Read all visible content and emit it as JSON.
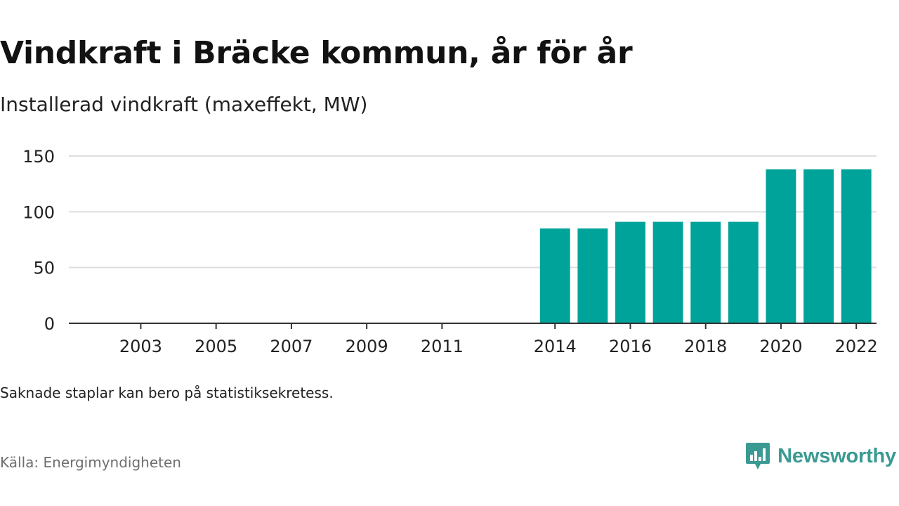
{
  "title": "Vindkraft i Bräcke kommun, år för år",
  "subtitle": "Installerad vindkraft (maxeffekt, MW)",
  "note": "Saknade staplar kan bero på statistiksekretess.",
  "source": {
    "label": "Källa:",
    "name": "Energimyndigheten"
  },
  "brand": {
    "name": "Newsworthy",
    "icon": "newsworthy-logo-icon",
    "color": "#3a9a93"
  },
  "colors": {
    "bar": "#00a39a",
    "grid": "#dddddd",
    "axis": "#333333"
  },
  "chart_data": {
    "type": "bar",
    "categories": [
      "2002",
      "2003",
      "2004",
      "2005",
      "2006",
      "2007",
      "2008",
      "2009",
      "2010",
      "2011",
      "2012",
      "2013",
      "2014",
      "2015",
      "2016",
      "2017",
      "2018",
      "2019",
      "2020",
      "2021",
      "2022"
    ],
    "values": [
      null,
      null,
      null,
      null,
      null,
      null,
      null,
      null,
      null,
      null,
      null,
      null,
      85,
      85,
      91,
      91,
      91,
      91,
      138,
      138,
      138
    ],
    "x_tick_labels": [
      "2003",
      "2005",
      "2007",
      "2009",
      "2011",
      "2014",
      "2016",
      "2018",
      "2020",
      "2022"
    ],
    "y_ticks": [
      0,
      50,
      100,
      150
    ],
    "ylim": [
      0,
      150
    ],
    "xlabel": "",
    "ylabel": "",
    "grid": true,
    "legend": "none"
  }
}
